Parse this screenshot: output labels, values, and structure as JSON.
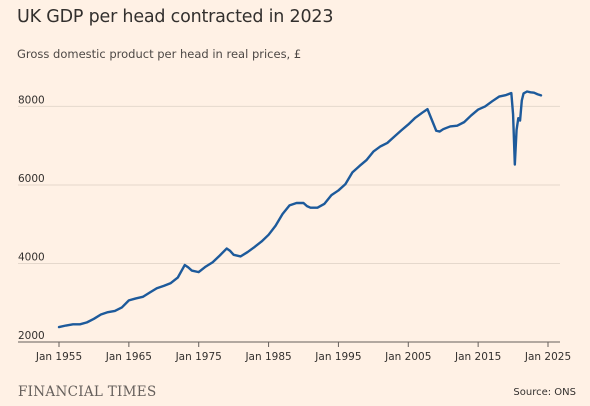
{
  "title": "UK GDP per head contracted in 2023",
  "subtitle": "Gross domestic product per head in real prices, £",
  "brand": "FINANCIAL TIMES",
  "source": "Source: ONS",
  "colors": {
    "background": "#fff1e5",
    "line": "#1d5a9b",
    "grid": "#e5d8cc",
    "text": "#33302e"
  },
  "chart_data": {
    "type": "line",
    "title": "UK GDP per head contracted in 2023",
    "subtitle": "Gross domestic product per head in real prices, £",
    "xlabel": "",
    "ylabel": "",
    "xlim": [
      1955,
      2025
    ],
    "ylim": [
      2000,
      8800
    ],
    "grid": true,
    "x_ticks": [
      1955,
      1965,
      1975,
      1985,
      1995,
      2005,
      2015,
      2025
    ],
    "x_tick_labels": [
      "Jan 1955",
      "Jan 1965",
      "Jan 1975",
      "Jan 1985",
      "Jan 1995",
      "Jan 2005",
      "Jan 2015",
      "Jan 2025"
    ],
    "y_ticks": [
      2000,
      4000,
      6000,
      8000
    ],
    "y_tick_labels": [
      "2000",
      "4000",
      "6000",
      "8000"
    ],
    "series": [
      {
        "x": [
          1955,
          1956,
          1957,
          1958,
          1959,
          1960,
          1961,
          1962,
          1963,
          1964,
          1965,
          1966,
          1967,
          1968,
          1969,
          1970,
          1971,
          1972,
          1973,
          1973.5,
          1974,
          1975,
          1976,
          1977,
          1978,
          1979,
          1979.5,
          1980,
          1981,
          1982,
          1983,
          1984,
          1985,
          1986,
          1987,
          1988,
          1989,
          1990,
          1990.5,
          1991,
          1992,
          1993,
          1994,
          1995,
          1996,
          1997,
          1998,
          1999,
          2000,
          2001,
          2002,
          2003,
          2004,
          2005,
          2006,
          2007,
          2007.75,
          2008.5,
          2009,
          2009.5,
          2010,
          2011,
          2012,
          2013,
          2014,
          2015,
          2016,
          2017,
          2018,
          2019,
          2019.75,
          2020,
          2020.25,
          2020.5,
          2020.75,
          2021,
          2021.25,
          2021.5,
          2022,
          2022.5,
          2023,
          2023.5,
          2024
        ],
        "values": [
          2380,
          2420,
          2450,
          2450,
          2500,
          2590,
          2700,
          2760,
          2790,
          2880,
          3060,
          3110,
          3150,
          3260,
          3370,
          3430,
          3500,
          3640,
          3960,
          3900,
          3820,
          3780,
          3920,
          4030,
          4200,
          4380,
          4320,
          4220,
          4180,
          4290,
          4420,
          4560,
          4730,
          4960,
          5260,
          5480,
          5540,
          5540,
          5460,
          5420,
          5420,
          5520,
          5740,
          5860,
          6020,
          6320,
          6480,
          6630,
          6850,
          6980,
          7070,
          7230,
          7390,
          7540,
          7710,
          7840,
          7930,
          7600,
          7380,
          7360,
          7420,
          7490,
          7510,
          7600,
          7770,
          7920,
          8000,
          8130,
          8250,
          8290,
          8340,
          7800,
          6520,
          7400,
          7700,
          7640,
          8150,
          8330,
          8380,
          8360,
          8350,
          8310,
          8280
        ]
      }
    ]
  }
}
